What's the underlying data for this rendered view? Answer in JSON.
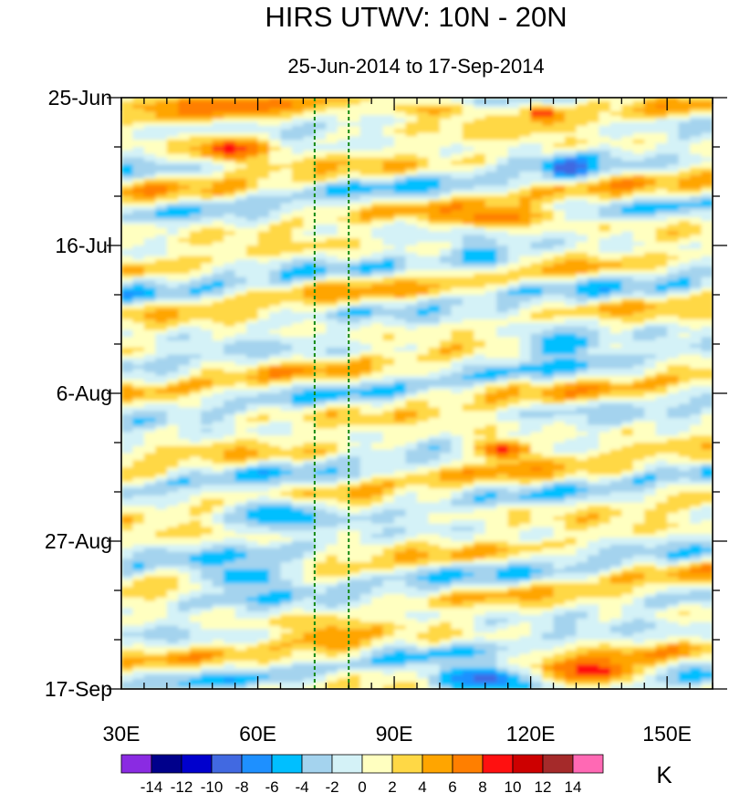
{
  "chart_data": {
    "type": "heatmap",
    "title": "HIRS UTWV: 10N - 20N",
    "subtitle": "25-Jun-2014 to 17-Sep-2014",
    "xlabel": "",
    "ylabel": "",
    "x_range": [
      30,
      160
    ],
    "x_ticks": [
      {
        "value": 30,
        "label": "30E"
      },
      {
        "value": 60,
        "label": "60E"
      },
      {
        "value": 90,
        "label": "90E"
      },
      {
        "value": 120,
        "label": "120E"
      },
      {
        "value": 150,
        "label": "150E"
      }
    ],
    "x_minor_step": 5,
    "y_range_days": [
      0,
      84
    ],
    "y_ticks": [
      {
        "day": 0,
        "label": "25-Jun"
      },
      {
        "day": 21,
        "label": "16-Jul"
      },
      {
        "day": 42,
        "label": "6-Aug"
      },
      {
        "day": 63,
        "label": "27-Aug"
      },
      {
        "day": 84,
        "label": "17-Sep"
      }
    ],
    "y_minor_step_days": 7,
    "reference_lines_lon": [
      72.5,
      80
    ],
    "colorbar": {
      "unit": "K",
      "levels": [
        -14,
        -12,
        -10,
        -8,
        -6,
        -4,
        -2,
        0,
        2,
        4,
        6,
        8,
        10,
        12,
        14
      ],
      "labels": [
        "-14",
        "-12",
        "-10",
        "-8",
        "-6",
        "-4",
        "-2",
        "0",
        "2",
        "4",
        "6",
        "8",
        "10",
        "12",
        "14"
      ],
      "colors": [
        "#8a2be2",
        "#00008b",
        "#0000cd",
        "#4169e1",
        "#1e90ff",
        "#00bfff",
        "#a4d3ee",
        "#d4f2f7",
        "#ffffc0",
        "#ffd845",
        "#ffa500",
        "#ff7f00",
        "#ff1010",
        "#cd0000",
        "#a52a2a",
        "#ff69b4"
      ]
    },
    "anomaly_features": [
      {
        "lon": [
          30,
          75
        ],
        "day": [
          0,
          2
        ],
        "value": 7
      },
      {
        "lon": [
          46,
          62
        ],
        "day": [
          6,
          8.5
        ],
        "value": 9
      },
      {
        "lon": [
          85,
          112
        ],
        "day": [
          1,
          2.5
        ],
        "value": 5
      },
      {
        "lon": [
          120,
          125
        ],
        "day": [
          1.5,
          3
        ],
        "value": 9
      },
      {
        "lon": [
          125,
          132
        ],
        "day": [
          9,
          11
        ],
        "value": -10
      },
      {
        "lon": [
          100,
          125
        ],
        "day": [
          16,
          18
        ],
        "value": 7
      },
      {
        "lon": [
          105,
          115
        ],
        "day": [
          21.5,
          24
        ],
        "value": -6
      },
      {
        "lon": [
          118,
          135
        ],
        "day": [
          33,
          37
        ],
        "value": -6
      },
      {
        "lon": [
          108,
          120
        ],
        "day": [
          49,
          51
        ],
        "value": 9
      },
      {
        "lon": [
          55,
          72
        ],
        "day": [
          57,
          61
        ],
        "value": -6
      },
      {
        "lon": [
          45,
          70
        ],
        "day": [
          66,
          70
        ],
        "value": -6
      },
      {
        "lon": [
          95,
          125
        ],
        "day": [
          81,
          84
        ],
        "value": -9
      },
      {
        "lon": [
          122,
          145
        ],
        "day": [
          80,
          83
        ],
        "value": 9
      },
      {
        "lon": [
          70,
          82
        ],
        "day": [
          75,
          79
        ],
        "value": 6
      }
    ]
  }
}
